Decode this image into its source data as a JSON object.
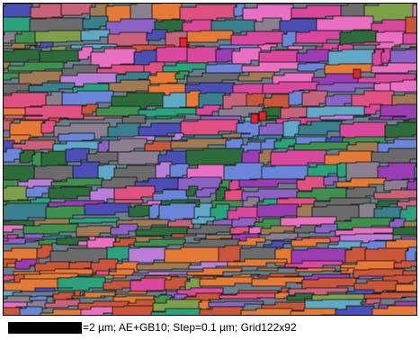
{
  "caption": {
    "text": "=2 µm; AE+GB10; Step=0.1 µm; Grid122x92"
  },
  "map": {
    "palette": [
      "#d9489c",
      "#e86fc1",
      "#3f8f4f",
      "#2d6b3a",
      "#7fa04a",
      "#6a86d8",
      "#8c62c4",
      "#4b4fb5",
      "#e47a36",
      "#c9553a",
      "#6b6b6b",
      "#8a7f8f",
      "#c8617a",
      "#2aa37c",
      "#9a3db2",
      "#b97fd8",
      "#5fa8c6",
      "#e05080",
      "#3a7f8e",
      "#a07a52"
    ],
    "accent_red": "#e8202a"
  }
}
